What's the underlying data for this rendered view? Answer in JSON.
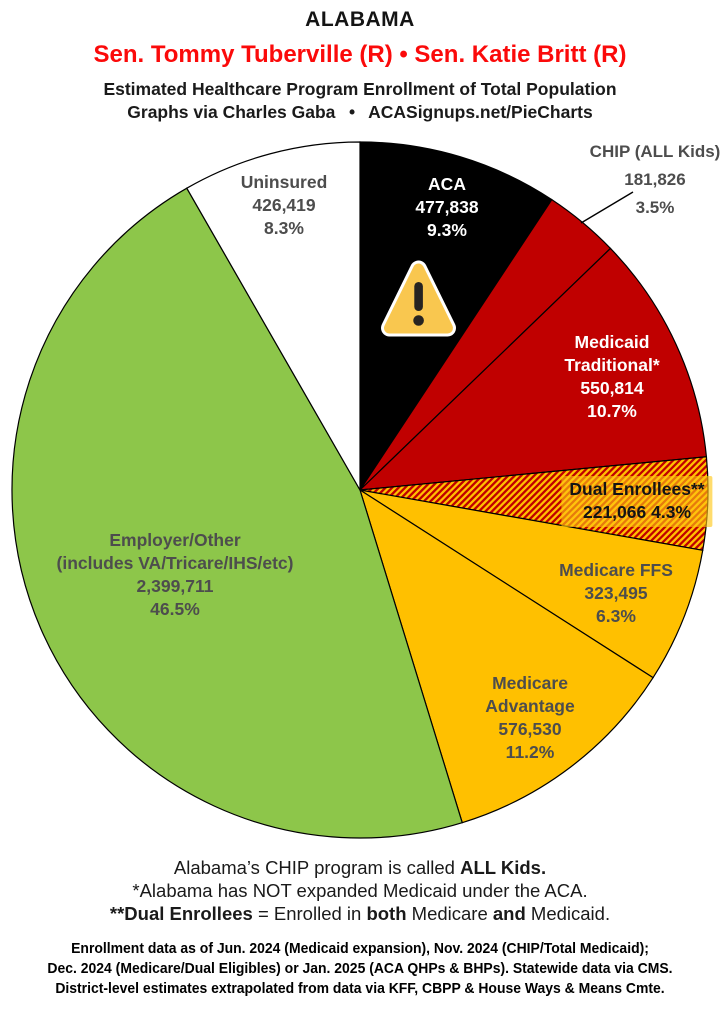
{
  "header": {
    "state": "ALABAMA",
    "senators": "Sen. Tommy Tuberville (R) • Sen. Katie Britt (R)",
    "subtitle": "Estimated Healthcare Program Enrollment of Total Population",
    "credit": "Graphs via Charles Gaba  •  ACASignups.net/PieCharts"
  },
  "colors": {
    "senators_red": "#FB0A0A",
    "pie_black": "#000000",
    "pie_red": "#C00000",
    "pie_gold": "#FFC000",
    "pie_green": "#8DC64A",
    "pie_white": "#FFFFFF",
    "label_gray": "#4D4D4D",
    "warning_amber": "#F9C74F"
  },
  "chart_data": {
    "type": "pie",
    "title": "Estimated Healthcare Program Enrollment of Total Population — Alabama",
    "direction": "clockwise",
    "start_angle_deg": 0,
    "slices": [
      {
        "id": "aca",
        "label": "ACA",
        "name_lines": [
          "ACA"
        ],
        "value": 477838,
        "value_text": "477,838",
        "pct": 9.3,
        "pct_text": "9.3%",
        "color": "#000000"
      },
      {
        "id": "chip",
        "label": "CHIP (ALL Kids)",
        "name_lines": [
          "CHIP (ALL Kids)"
        ],
        "value": 181826,
        "value_text": "181,826",
        "pct": 3.5,
        "pct_text": "3.5%",
        "color": "#C00000",
        "label_outside": true
      },
      {
        "id": "medicaid-traditional",
        "label": "Medicaid Traditional*",
        "name_lines": [
          "Medicaid",
          "Traditional*"
        ],
        "value": 550814,
        "value_text": "550,814",
        "pct": 10.7,
        "pct_text": "10.7%",
        "color": "#C00000"
      },
      {
        "id": "dual-enrollees",
        "label": "Dual Enrollees**",
        "name_lines": [
          "Dual Enrollees**"
        ],
        "value": 221066,
        "value_text": "221,066",
        "pct": 4.3,
        "pct_text": "4.3%",
        "color": "#FFC000",
        "hatch": true,
        "hatch_color": "#C00000"
      },
      {
        "id": "medicare-ffs",
        "label": "Medicare FFS",
        "name_lines": [
          "Medicare FFS"
        ],
        "value": 323495,
        "value_text": "323,495",
        "pct": 6.3,
        "pct_text": "6.3%",
        "color": "#FFC000"
      },
      {
        "id": "medicare-advantage",
        "label": "Medicare Advantage",
        "name_lines": [
          "Medicare",
          "Advantage"
        ],
        "value": 576530,
        "value_text": "576,530",
        "pct": 11.2,
        "pct_text": "11.2%",
        "color": "#FFC000"
      },
      {
        "id": "employer-other",
        "label": "Employer/Other (includes VA/Tricare/IHS/etc)",
        "name_lines": [
          "Employer/Other",
          "(includes VA/Tricare/IHS/etc)"
        ],
        "value": 2399711,
        "value_text": "2,399,711",
        "pct": 46.5,
        "pct_text": "46.5%",
        "color": "#8DC64A"
      },
      {
        "id": "uninsured",
        "label": "Uninsured",
        "name_lines": [
          "Uninsured"
        ],
        "value": 426419,
        "value_text": "426,419",
        "pct": 8.3,
        "pct_text": "8.3%",
        "color": "#FFFFFF"
      }
    ]
  },
  "notes": {
    "line1_a": "Alabama’s CHIP program is called ",
    "line1_b": "ALL Kids.",
    "line2": "*Alabama has NOT expanded Medicaid under the ACA.",
    "line3_a": "**Dual Enrollees",
    "line3_b": " = Enrolled in ",
    "line3_c": "both",
    "line3_d": " Medicare ",
    "line3_e": "and",
    "line3_f": " Medicaid."
  },
  "fine_print": {
    "line1": "Enrollment data as of Jun. 2024 (Medicaid expansion), Nov. 2024 (CHIP/Total Medicaid);",
    "line2": "Dec. 2024 (Medicare/Dual Eligibles) or Jan. 2025 (ACA QHPs & BHPs). Statewide data via CMS.",
    "line3": "District-level estimates extrapolated from data via KFF, CBPP & House Ways & Means Cmte."
  }
}
